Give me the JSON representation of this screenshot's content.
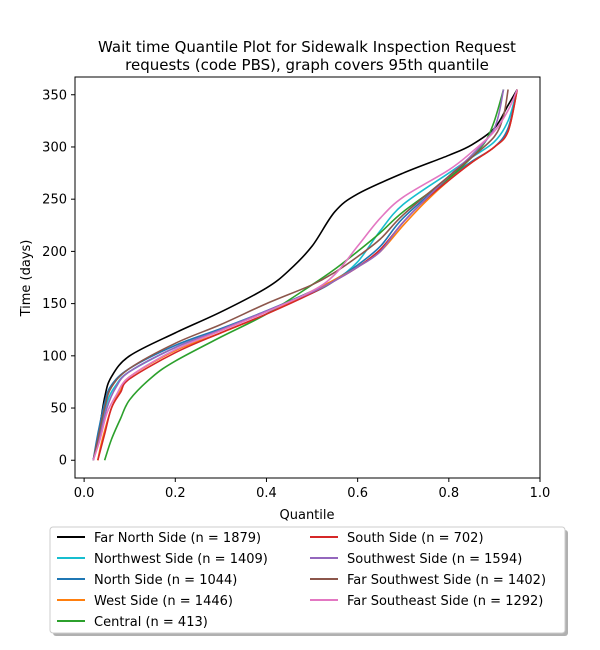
{
  "chart_data": {
    "type": "line",
    "title_lines": [
      "Wait time Quantile Plot for Sidewalk Inspection Request",
      "requests (code PBS), graph covers 95th quantile"
    ],
    "xlabel": "Quantile",
    "ylabel": "Time (days)",
    "xlim": [
      -0.02,
      1.0
    ],
    "ylim": [
      -17,
      367
    ],
    "xticks": [
      0.0,
      0.2,
      0.4,
      0.6,
      0.8,
      1.0
    ],
    "xtick_labels": [
      "0.0",
      "0.2",
      "0.4",
      "0.6",
      "0.8",
      "1.0"
    ],
    "yticks": [
      0,
      50,
      100,
      150,
      200,
      250,
      300,
      350
    ],
    "ytick_labels": [
      "0",
      "50",
      "100",
      "150",
      "200",
      "250",
      "300",
      "350"
    ],
    "grid": false,
    "legend_placement": "below plot, two columns",
    "series": [
      {
        "name": "Far North Side (n = 1879)",
        "color": "#000000",
        "points": [
          [
            0.02,
            0
          ],
          [
            0.03,
            20
          ],
          [
            0.045,
            60
          ],
          [
            0.06,
            80
          ],
          [
            0.1,
            100
          ],
          [
            0.2,
            122
          ],
          [
            0.3,
            142
          ],
          [
            0.4,
            165
          ],
          [
            0.45,
            182
          ],
          [
            0.5,
            205
          ],
          [
            0.55,
            238
          ],
          [
            0.6,
            255
          ],
          [
            0.7,
            275
          ],
          [
            0.8,
            292
          ],
          [
            0.85,
            302
          ],
          [
            0.9,
            318
          ],
          [
            0.93,
            340
          ],
          [
            0.95,
            355
          ]
        ]
      },
      {
        "name": "Northwest Side (n = 1409)",
        "color": "#17becf",
        "points": [
          [
            0.02,
            0
          ],
          [
            0.03,
            20
          ],
          [
            0.05,
            55
          ],
          [
            0.07,
            72
          ],
          [
            0.1,
            85
          ],
          [
            0.2,
            108
          ],
          [
            0.3,
            125
          ],
          [
            0.4,
            143
          ],
          [
            0.5,
            160
          ],
          [
            0.55,
            172
          ],
          [
            0.6,
            190
          ],
          [
            0.65,
            220
          ],
          [
            0.7,
            245
          ],
          [
            0.8,
            275
          ],
          [
            0.85,
            290
          ],
          [
            0.9,
            305
          ],
          [
            0.93,
            325
          ],
          [
            0.95,
            355
          ]
        ]
      },
      {
        "name": "North Side (n = 1044)",
        "color": "#1f77b4",
        "points": [
          [
            0.02,
            0
          ],
          [
            0.03,
            25
          ],
          [
            0.045,
            55
          ],
          [
            0.06,
            72
          ],
          [
            0.1,
            88
          ],
          [
            0.2,
            110
          ],
          [
            0.3,
            126
          ],
          [
            0.4,
            143
          ],
          [
            0.5,
            162
          ],
          [
            0.55,
            173
          ],
          [
            0.6,
            187
          ],
          [
            0.65,
            205
          ],
          [
            0.7,
            232
          ],
          [
            0.8,
            270
          ],
          [
            0.85,
            286
          ],
          [
            0.9,
            300
          ],
          [
            0.93,
            318
          ],
          [
            0.95,
            355
          ]
        ]
      },
      {
        "name": "West Side (n = 1446)",
        "color": "#ff7f0e",
        "points": [
          [
            0.03,
            0
          ],
          [
            0.04,
            20
          ],
          [
            0.06,
            50
          ],
          [
            0.08,
            67
          ],
          [
            0.1,
            80
          ],
          [
            0.2,
            105
          ],
          [
            0.3,
            122
          ],
          [
            0.4,
            140
          ],
          [
            0.5,
            162
          ],
          [
            0.55,
            173
          ],
          [
            0.6,
            185
          ],
          [
            0.65,
            200
          ],
          [
            0.7,
            225
          ],
          [
            0.75,
            248
          ],
          [
            0.8,
            268
          ],
          [
            0.85,
            285
          ],
          [
            0.9,
            300
          ],
          [
            0.93,
            315
          ],
          [
            0.95,
            355
          ]
        ]
      },
      {
        "name": "Central (n = 413)",
        "color": "#2ca02c",
        "points": [
          [
            0.045,
            0
          ],
          [
            0.06,
            20
          ],
          [
            0.08,
            40
          ],
          [
            0.1,
            58
          ],
          [
            0.15,
            80
          ],
          [
            0.2,
            95
          ],
          [
            0.3,
            118
          ],
          [
            0.4,
            140
          ],
          [
            0.5,
            168
          ],
          [
            0.55,
            183
          ],
          [
            0.6,
            200
          ],
          [
            0.65,
            218
          ],
          [
            0.7,
            238
          ],
          [
            0.8,
            270
          ],
          [
            0.85,
            290
          ],
          [
            0.88,
            305
          ],
          [
            0.9,
            325
          ],
          [
            0.92,
            355
          ]
        ]
      },
      {
        "name": "South Side (n = 702)",
        "color": "#d62728",
        "points": [
          [
            0.03,
            0
          ],
          [
            0.045,
            25
          ],
          [
            0.06,
            50
          ],
          [
            0.08,
            65
          ],
          [
            0.1,
            78
          ],
          [
            0.2,
            103
          ],
          [
            0.3,
            122
          ],
          [
            0.4,
            140
          ],
          [
            0.5,
            160
          ],
          [
            0.55,
            172
          ],
          [
            0.6,
            185
          ],
          [
            0.65,
            202
          ],
          [
            0.7,
            228
          ],
          [
            0.75,
            250
          ],
          [
            0.8,
            268
          ],
          [
            0.85,
            285
          ],
          [
            0.9,
            300
          ],
          [
            0.93,
            315
          ],
          [
            0.95,
            355
          ]
        ]
      },
      {
        "name": "Southwest Side (n = 1594)",
        "color": "#9467bd",
        "points": [
          [
            0.02,
            0
          ],
          [
            0.03,
            15
          ],
          [
            0.05,
            50
          ],
          [
            0.07,
            70
          ],
          [
            0.1,
            85
          ],
          [
            0.2,
            108
          ],
          [
            0.3,
            125
          ],
          [
            0.4,
            143
          ],
          [
            0.5,
            161
          ],
          [
            0.55,
            172
          ],
          [
            0.6,
            185
          ],
          [
            0.65,
            200
          ],
          [
            0.7,
            228
          ],
          [
            0.8,
            272
          ],
          [
            0.85,
            292
          ],
          [
            0.9,
            318
          ],
          [
            0.92,
            355
          ]
        ]
      },
      {
        "name": "Far Southwest Side (n = 1402)",
        "color": "#8c564b",
        "points": [
          [
            0.02,
            0
          ],
          [
            0.03,
            20
          ],
          [
            0.045,
            50
          ],
          [
            0.06,
            70
          ],
          [
            0.1,
            88
          ],
          [
            0.2,
            112
          ],
          [
            0.3,
            130
          ],
          [
            0.4,
            150
          ],
          [
            0.5,
            168
          ],
          [
            0.55,
            180
          ],
          [
            0.6,
            195
          ],
          [
            0.65,
            212
          ],
          [
            0.7,
            235
          ],
          [
            0.8,
            272
          ],
          [
            0.85,
            290
          ],
          [
            0.9,
            310
          ],
          [
            0.92,
            330
          ],
          [
            0.93,
            355
          ]
        ]
      },
      {
        "name": "Far Southeast Side (n = 1292)",
        "color": "#e377c2",
        "points": [
          [
            0.02,
            0
          ],
          [
            0.035,
            20
          ],
          [
            0.05,
            45
          ],
          [
            0.07,
            62
          ],
          [
            0.1,
            80
          ],
          [
            0.2,
            106
          ],
          [
            0.3,
            124
          ],
          [
            0.4,
            142
          ],
          [
            0.5,
            162
          ],
          [
            0.55,
            178
          ],
          [
            0.6,
            205
          ],
          [
            0.65,
            232
          ],
          [
            0.7,
            252
          ],
          [
            0.8,
            278
          ],
          [
            0.85,
            295
          ],
          [
            0.9,
            315
          ],
          [
            0.93,
            335
          ],
          [
            0.95,
            355
          ]
        ]
      }
    ]
  }
}
